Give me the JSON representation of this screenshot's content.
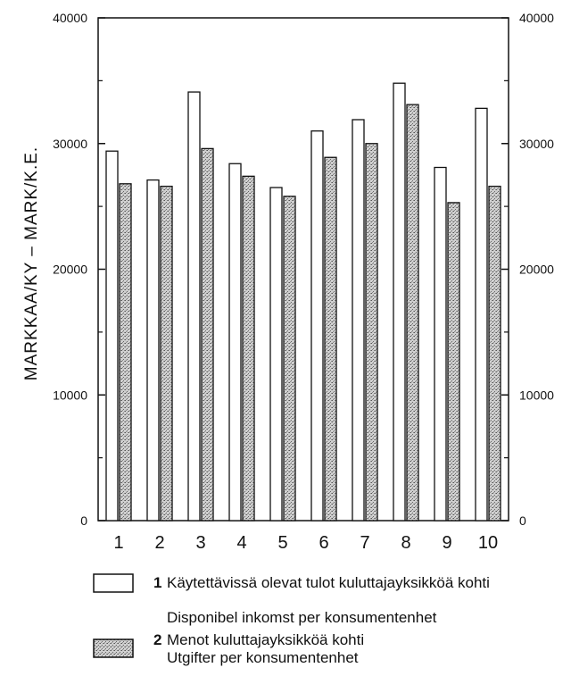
{
  "chart_data": {
    "type": "bar",
    "categories": [
      "1",
      "2",
      "3",
      "4",
      "5",
      "6",
      "7",
      "8",
      "9",
      "10"
    ],
    "series": [
      {
        "name": "Käytettävissä olevat tulot kuluttajayksikköä kohti",
        "name_alt": "Disponibel inkomst per konsumentenhet",
        "number": "1",
        "values": [
          29400,
          27100,
          34100,
          28400,
          26500,
          31000,
          31900,
          34800,
          28100,
          32800
        ],
        "color": "#ffffff"
      },
      {
        "name": "Menot kuluttajayksikköä kohti",
        "name_alt": "Utgifter per konsumentenhet",
        "number": "2",
        "values": [
          26800,
          26600,
          29600,
          27400,
          25800,
          28900,
          30000,
          33100,
          25300,
          26600
        ],
        "color": "#b8b8b8"
      }
    ],
    "ylabel": "MARKKAA/KY – MARK/K.E.",
    "ylim": [
      0,
      40000
    ],
    "yticks": [
      "0",
      "10000",
      "20000",
      "30000",
      "40000"
    ],
    "right_axis": true,
    "grid": false,
    "legend_position": "bottom"
  }
}
